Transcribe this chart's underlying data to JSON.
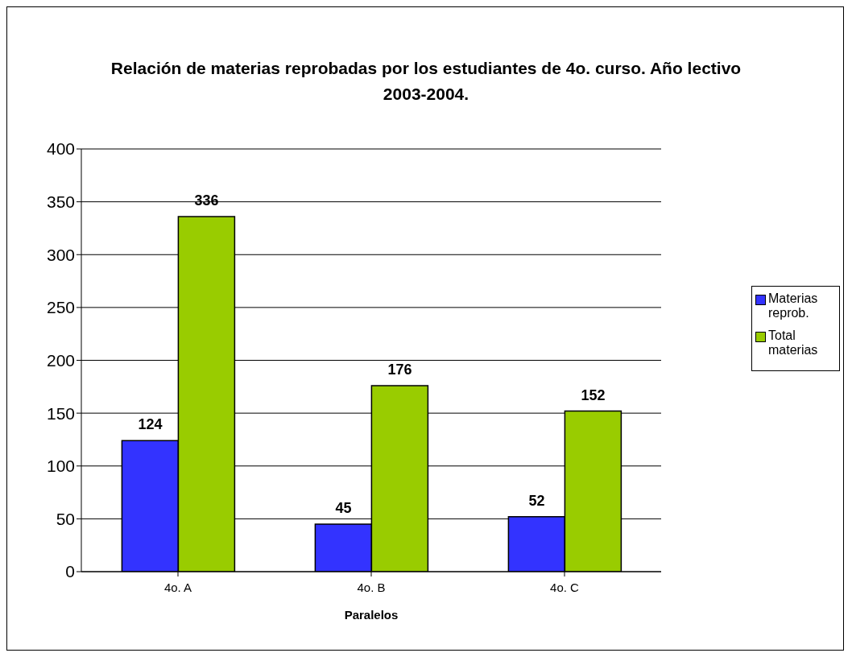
{
  "chart_data": {
    "type": "bar",
    "title": "Relación de materias reprobadas por los estudiantes de 4o. curso. Año lectivo 2003-2004.",
    "xlabel": "Paralelos",
    "categories": [
      "4o. A",
      "4o. B",
      "4o. C"
    ],
    "series": [
      {
        "name": "Materias reprob.",
        "color": "#3333ff",
        "values": [
          124,
          45,
          52
        ]
      },
      {
        "name": "Total materias",
        "color": "#99cc00",
        "values": [
          336,
          176,
          152
        ]
      }
    ],
    "ylim": [
      0,
      400
    ],
    "yticks": [
      0,
      50,
      100,
      150,
      200,
      250,
      300,
      350,
      400
    ],
    "grid": "y",
    "legend": "right",
    "data_labels": true
  }
}
